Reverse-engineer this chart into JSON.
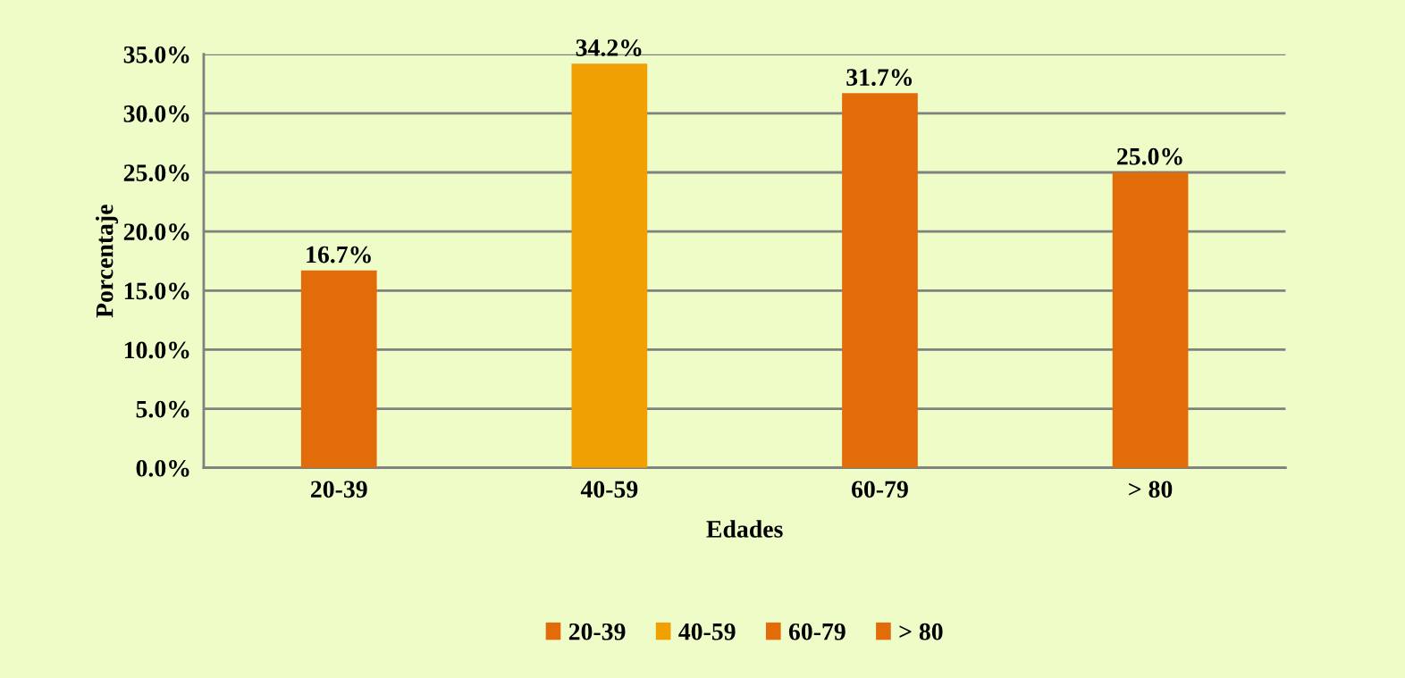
{
  "chart_data": {
    "type": "bar",
    "xlabel": "Edades",
    "ylabel": "Porcentaje",
    "categories": [
      "20-39",
      "40-59",
      "60-79",
      "> 80"
    ],
    "series": [
      {
        "name": "20-39",
        "color": "#e36c0a",
        "values": [
          16.7,
          null,
          null,
          null
        ],
        "value_labels": [
          "16.7%",
          null,
          null,
          null
        ]
      },
      {
        "name": "40-59",
        "color": "#f0a000",
        "values": [
          null,
          34.2,
          null,
          null
        ],
        "value_labels": [
          null,
          "34.2%",
          null,
          null
        ]
      },
      {
        "name": "60-79",
        "color": "#e36c0a",
        "values": [
          null,
          null,
          31.7,
          null
        ],
        "value_labels": [
          null,
          null,
          "31.7%",
          null
        ]
      },
      {
        "name": "> 80",
        "color": "#e36c0a",
        "values": [
          null,
          null,
          null,
          25.0
        ],
        "value_labels": [
          null,
          null,
          null,
          "25.0%"
        ]
      }
    ],
    "ylim": [
      0,
      35
    ],
    "yticks": [
      {
        "value": 0,
        "label": "0.0%"
      },
      {
        "value": 5,
        "label": "5.0%"
      },
      {
        "value": 10,
        "label": "10.0%"
      },
      {
        "value": 15,
        "label": "15.0%"
      },
      {
        "value": 20,
        "label": "20.0%"
      },
      {
        "value": 25,
        "label": "25.0%"
      },
      {
        "value": 30,
        "label": "30.0%"
      },
      {
        "value": 35,
        "label": "35.0%"
      }
    ],
    "grid": "y",
    "legend": "bottom"
  }
}
